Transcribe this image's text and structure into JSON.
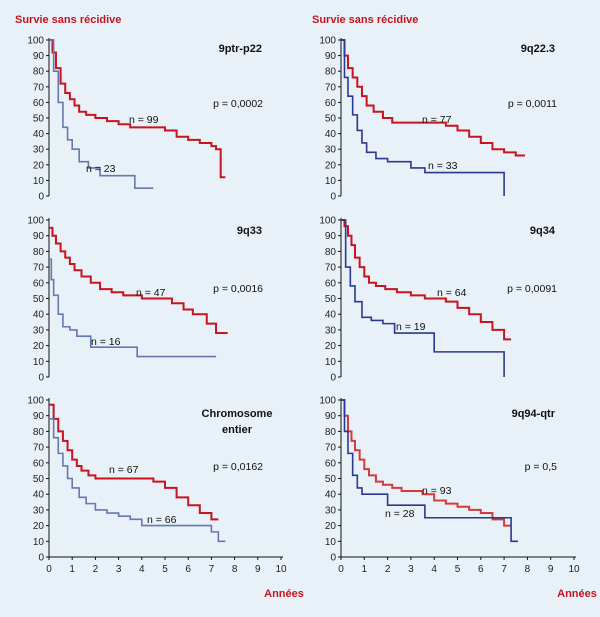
{
  "chart_data": [
    {
      "type": "line",
      "title": "9ptr-p22",
      "ylabel": "Survie sans récidive",
      "xlabel": "",
      "xlim": [
        0,
        10
      ],
      "ylim": [
        0,
        100
      ],
      "p_value": "p = 0,0002",
      "series": [
        {
          "name": "n = 99",
          "color": "#c8141e",
          "x": [
            0,
            0.15,
            0.3,
            0.5,
            0.7,
            0.9,
            1.1,
            1.3,
            1.6,
            2.0,
            2.5,
            3.0,
            3.5,
            4.0,
            4.5,
            5.0,
            5.5,
            6.0,
            6.5,
            7.0,
            7.2,
            7.4,
            7.6
          ],
          "y": [
            100,
            92,
            82,
            72,
            66,
            62,
            58,
            54,
            52,
            50,
            48,
            46,
            44,
            44,
            44,
            42,
            38,
            36,
            34,
            32,
            30,
            12,
            12
          ]
        },
        {
          "name": "n = 23",
          "color": "#6678b0",
          "x": [
            0,
            0.2,
            0.4,
            0.6,
            0.8,
            1.0,
            1.3,
            1.7,
            2.2,
            3.0,
            3.7,
            4.0,
            4.5
          ],
          "y": [
            100,
            80,
            60,
            44,
            36,
            30,
            22,
            18,
            13,
            13,
            5,
            5,
            5
          ]
        }
      ]
    },
    {
      "type": "line",
      "title": "9q22.3",
      "ylabel": "Survie sans récidive",
      "xlabel": "",
      "xlim": [
        0,
        10
      ],
      "ylim": [
        0,
        100
      ],
      "p_value": "p = 0,0011",
      "series": [
        {
          "name": "n = 77",
          "color": "#c8141e",
          "x": [
            0,
            0.15,
            0.3,
            0.5,
            0.7,
            0.9,
            1.1,
            1.4,
            1.8,
            2.2,
            3.0,
            3.8,
            4.5,
            5.0,
            5.5,
            6.0,
            6.5,
            7.0,
            7.5,
            7.9
          ],
          "y": [
            100,
            90,
            82,
            76,
            70,
            64,
            58,
            54,
            50,
            47,
            47,
            47,
            45,
            42,
            38,
            34,
            30,
            28,
            26,
            26
          ]
        },
        {
          "name": "n = 33",
          "color": "#2b3990",
          "x": [
            0,
            0.15,
            0.3,
            0.5,
            0.7,
            0.9,
            1.1,
            1.5,
            2.0,
            3.0,
            3.6,
            4.0,
            5.0,
            6.0,
            7.0
          ],
          "y": [
            100,
            76,
            64,
            52,
            42,
            34,
            28,
            24,
            22,
            18,
            15,
            15,
            15,
            15,
            0
          ]
        }
      ]
    },
    {
      "type": "line",
      "title": "9q33",
      "ylabel": "",
      "xlabel": "",
      "xlim": [
        0,
        10
      ],
      "ylim": [
        0,
        100
      ],
      "p_value": "p = 0,0016",
      "series": [
        {
          "name": "n = 47",
          "color": "#c8141e",
          "x": [
            0,
            0.15,
            0.3,
            0.5,
            0.7,
            0.9,
            1.1,
            1.4,
            1.8,
            2.2,
            2.7,
            3.2,
            4.0,
            4.8,
            5.3,
            5.8,
            6.2,
            6.8,
            7.2,
            7.7
          ],
          "y": [
            95,
            90,
            85,
            80,
            76,
            72,
            68,
            64,
            60,
            56,
            54,
            52,
            50,
            50,
            47,
            43,
            40,
            34,
            28,
            28
          ]
        },
        {
          "name": "n = 16",
          "color": "#6678b0",
          "x": [
            0,
            0.1,
            0.2,
            0.4,
            0.6,
            0.9,
            1.2,
            1.8,
            2.5,
            3.2,
            3.8,
            4.5,
            5.5,
            6.5,
            7.2
          ],
          "y": [
            75,
            62,
            52,
            40,
            32,
            30,
            26,
            19,
            19,
            19,
            13,
            13,
            13,
            13,
            13
          ]
        }
      ]
    },
    {
      "type": "line",
      "title": "9q34",
      "ylabel": "",
      "xlabel": "",
      "xlim": [
        0,
        10
      ],
      "ylim": [
        0,
        100
      ],
      "p_value": "p = 0,0091",
      "series": [
        {
          "name": "n = 64",
          "color": "#c8141e",
          "x": [
            0,
            0.15,
            0.3,
            0.45,
            0.6,
            0.8,
            1.0,
            1.2,
            1.5,
            1.9,
            2.4,
            3.0,
            3.6,
            4.0,
            4.5,
            5.0,
            5.5,
            6.0,
            6.5,
            7.0,
            7.3
          ],
          "y": [
            100,
            96,
            90,
            84,
            76,
            70,
            64,
            60,
            58,
            56,
            54,
            52,
            50,
            50,
            48,
            44,
            40,
            35,
            30,
            24,
            24
          ]
        },
        {
          "name": "n = 19",
          "color": "#2b3990",
          "x": [
            0,
            0.2,
            0.4,
            0.6,
            0.9,
            1.3,
            1.8,
            2.3,
            3.0,
            3.6,
            4.0,
            5.0,
            6.0,
            7.0
          ],
          "y": [
            100,
            70,
            58,
            48,
            38,
            36,
            34,
            28,
            28,
            28,
            16,
            16,
            16,
            0
          ]
        }
      ]
    },
    {
      "type": "line",
      "title": "Chromosome entier",
      "ylabel": "",
      "xlabel": "Années",
      "xlim": [
        0,
        10
      ],
      "ylim": [
        0,
        100
      ],
      "p_value": "p = 0,0162",
      "series": [
        {
          "name": "n = 67",
          "color": "#c8141e",
          "x": [
            0,
            0.2,
            0.4,
            0.6,
            0.8,
            1.0,
            1.2,
            1.4,
            1.7,
            2.0,
            2.5,
            3.0,
            3.5,
            4.0,
            4.5,
            5.0,
            5.5,
            6.0,
            6.5,
            7.0,
            7.3
          ],
          "y": [
            97,
            88,
            80,
            74,
            68,
            62,
            58,
            55,
            52,
            50,
            50,
            50,
            50,
            50,
            48,
            44,
            38,
            33,
            28,
            24,
            24
          ]
        },
        {
          "name": "n = 66",
          "color": "#6678b0",
          "x": [
            0,
            0.2,
            0.4,
            0.6,
            0.8,
            1.0,
            1.3,
            1.6,
            2.0,
            2.5,
            3.0,
            3.5,
            4.0,
            4.5,
            5.0,
            5.5,
            6.0,
            6.5,
            7.0,
            7.3,
            7.6
          ],
          "y": [
            88,
            76,
            66,
            58,
            50,
            44,
            38,
            34,
            30,
            28,
            26,
            24,
            20,
            20,
            20,
            20,
            20,
            20,
            16,
            10,
            10
          ]
        }
      ]
    },
    {
      "type": "line",
      "title": "9q94-qtr",
      "ylabel": "",
      "xlabel": "Années",
      "xlim": [
        0,
        10
      ],
      "ylim": [
        0,
        100
      ],
      "p_value": "p = 0,5",
      "series": [
        {
          "name": "n = 93",
          "color": "#d23c3c",
          "x": [
            0,
            0.15,
            0.3,
            0.45,
            0.6,
            0.8,
            1.0,
            1.2,
            1.5,
            1.8,
            2.2,
            2.6,
            3.0,
            3.5,
            4.0,
            4.5,
            5.0,
            5.5,
            6.0,
            6.5,
            7.0,
            7.3
          ],
          "y": [
            100,
            90,
            80,
            74,
            68,
            62,
            56,
            52,
            48,
            46,
            44,
            42,
            42,
            40,
            36,
            34,
            32,
            30,
            28,
            24,
            20,
            20
          ]
        },
        {
          "name": "n = 28",
          "color": "#2b3990",
          "x": [
            0,
            0.15,
            0.3,
            0.5,
            0.7,
            0.9,
            1.2,
            1.6,
            2.0,
            3.0,
            3.6,
            4.0,
            5.0,
            6.0,
            7.0,
            7.3,
            7.6
          ],
          "y": [
            100,
            80,
            66,
            52,
            44,
            40,
            40,
            40,
            33,
            33,
            25,
            25,
            25,
            25,
            25,
            10,
            10
          ]
        }
      ]
    }
  ]
}
